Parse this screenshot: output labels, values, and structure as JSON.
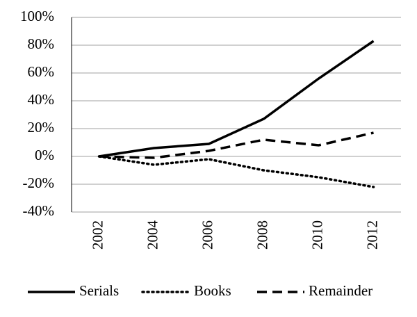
{
  "chart_data": {
    "type": "line",
    "categories": [
      "2002",
      "2004",
      "2006",
      "2008",
      "2010",
      "2012"
    ],
    "series": [
      {
        "name": "Serials",
        "color": "#000000",
        "dash": "solid",
        "values": [
          0,
          6,
          9,
          27,
          56,
          83
        ]
      },
      {
        "name": "Books",
        "color": "#000000",
        "dash": "dotted",
        "values": [
          0,
          -6,
          -2,
          -10,
          -15,
          -22
        ]
      },
      {
        "name": "Remainder",
        "color": "#000000",
        "dash": "dashed",
        "values": [
          0,
          -1,
          4,
          12,
          8,
          17
        ]
      }
    ],
    "ylim": [
      -40,
      100
    ],
    "yticks": [
      {
        "value": -40,
        "label": "-40%"
      },
      {
        "value": -20,
        "label": "-20%"
      },
      {
        "value": 0,
        "label": "0%"
      },
      {
        "value": 20,
        "label": "20%"
      },
      {
        "value": 40,
        "label": "40%"
      },
      {
        "value": 60,
        "label": "60%"
      },
      {
        "value": 80,
        "label": "80%"
      },
      {
        "value": 100,
        "label": "100%"
      }
    ],
    "grid": true,
    "legend": "bottom"
  }
}
